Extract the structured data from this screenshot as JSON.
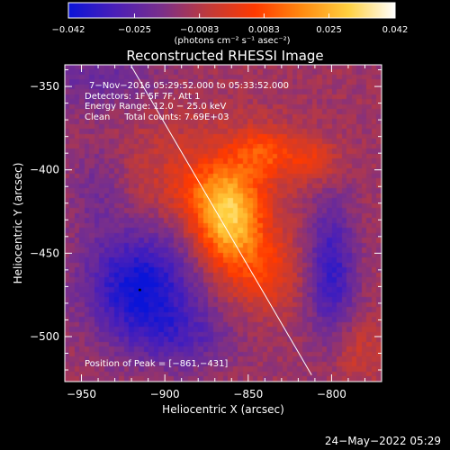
{
  "chart_data": {
    "type": "heatmap",
    "title": "Reconstructed RHESSI Image",
    "xlabel": "Heliocentric X (arcsec)",
    "ylabel": "Heliocentric Y (arcsec)",
    "xlim": [
      -960,
      -770
    ],
    "ylim": [
      -527,
      -337
    ],
    "x_ticks": [
      -950,
      -900,
      -850,
      -800
    ],
    "x_tick_labels": [
      "−950",
      "−900",
      "−850",
      "−800"
    ],
    "y_ticks": [
      -350,
      -400,
      -450,
      -500
    ],
    "y_tick_labels": [
      "−350",
      "−400",
      "−450",
      "−500"
    ],
    "colorbar": {
      "range": [
        -0.042,
        0.042
      ],
      "ticks": [
        -0.042,
        -0.025,
        -0.0083,
        0.0083,
        0.025,
        0.042
      ],
      "tick_labels": [
        "−0.042",
        "−0.025",
        "−0.0083",
        "0.0083",
        "0.025",
        "0.042"
      ],
      "unit_label": "(photons cm⁻² s⁻¹ asec⁻²)",
      "colors": [
        "#0a14d8",
        "#4a1fb8",
        "#7a2f8a",
        "#c03a3a",
        "#ff3a00",
        "#ff8a10",
        "#ffd040",
        "#ffffff"
      ]
    },
    "annotations": [
      "7−Nov−2016 05:29:52.000 to 05:33:52.000",
      "Detectors: 1F 5F 7F, Att 1",
      "Energy Range: 12.0 − 25.0 keV",
      "Clean     Total counts: 7.69E+03",
      "Position of Peak = [−861,−431]"
    ],
    "peak": {
      "x": -861,
      "y": -431
    },
    "grid": false,
    "limb_line": [
      {
        "x": -920,
        "y": -338
      },
      {
        "x": -812,
        "y": -523
      }
    ],
    "components": [
      {
        "x": -862,
        "y": -431,
        "sx": 14,
        "sy": 18,
        "amp": 0.036
      },
      {
        "x": -870,
        "y": -412,
        "sx": 22,
        "sy": 14,
        "amp": 0.013
      },
      {
        "x": -840,
        "y": -390,
        "sx": 14,
        "sy": 10,
        "amp": 0.017
      },
      {
        "x": -810,
        "y": -395,
        "sx": 10,
        "sy": 9,
        "amp": 0.012
      },
      {
        "x": -842,
        "y": -460,
        "sx": 16,
        "sy": 18,
        "amp": 0.016
      },
      {
        "x": -880,
        "y": -390,
        "sx": 40,
        "sy": 22,
        "amp": 0.006
      },
      {
        "x": -915,
        "y": -470,
        "sx": 22,
        "sy": 22,
        "amp": -0.03
      },
      {
        "x": -890,
        "y": -500,
        "sx": 22,
        "sy": 14,
        "amp": -0.013
      },
      {
        "x": -800,
        "y": -460,
        "sx": 10,
        "sy": 28,
        "amp": -0.022
      },
      {
        "x": -940,
        "y": -345,
        "sx": 26,
        "sy": 14,
        "amp": -0.01
      },
      {
        "x": -940,
        "y": -410,
        "sx": 12,
        "sy": 22,
        "amp": -0.008
      },
      {
        "x": -783,
        "y": -510,
        "sx": 12,
        "sy": 14,
        "amp": 0.008
      }
    ],
    "baseline": -0.012
  },
  "footer": {
    "date": "24−May−2022 05:29"
  }
}
